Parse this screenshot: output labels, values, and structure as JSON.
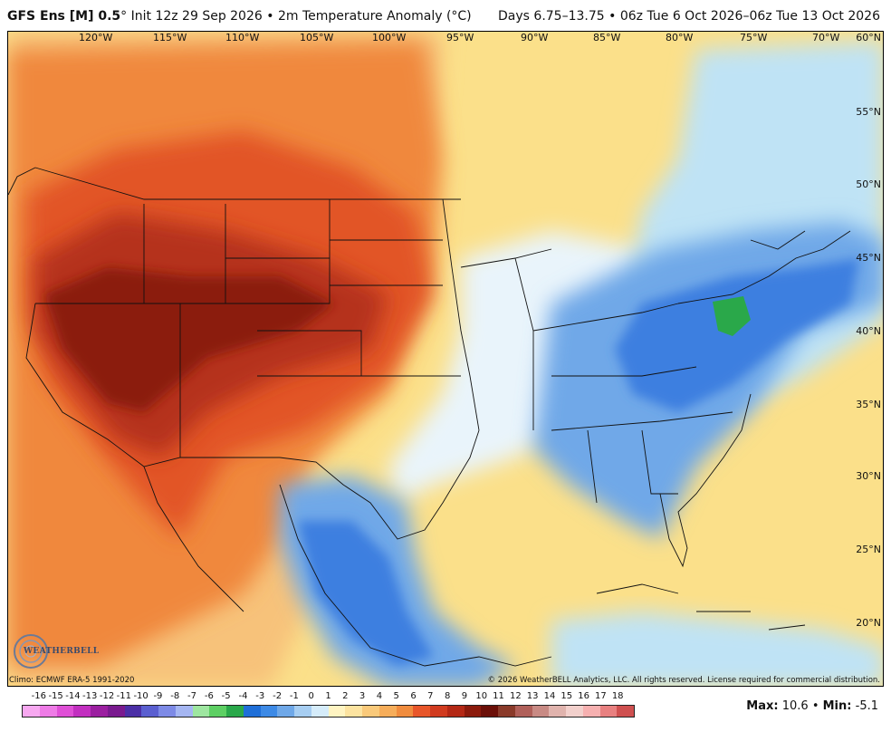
{
  "header": {
    "model": "GFS Ens [M] 0.5",
    "init": "° Init 12z 29 Sep 2026",
    "variable": "2m Temperature Anomaly (°C)",
    "days": "Days 6.75–13.75",
    "period": "06z Tue 6 Oct 2026–06z Tue 13 Oct 2026",
    "bullet": "•"
  },
  "map": {
    "longitude_labels": [
      "120°W",
      "115°W",
      "110°W",
      "105°W",
      "100°W",
      "95°W",
      "90°W",
      "85°W",
      "80°W",
      "75°W",
      "70°W"
    ],
    "latitude_labels": [
      "60°N",
      "55°N",
      "50°N",
      "45°N",
      "40°N",
      "35°N",
      "30°N",
      "25°N",
      "20°N"
    ],
    "colors": {
      "ocean_base": "#fbe08a",
      "warm_core": "#8b1a0c",
      "warm_mid": "#e8562a",
      "warm_light": "#f4a15f",
      "cool_light": "#bfe3f5",
      "cool_mid": "#6fa8e8",
      "cool_deep": "#2f6fd8",
      "extreme_cold": "#2aa84a"
    }
  },
  "footer": {
    "climo": "Climo: ECMWF ERA-5 1991-2020",
    "copyright": "© 2026 WeatherBELL Analytics, LLC. All rights reserved. License required for commercial distribution.",
    "logo_text": "WEATHERBELL"
  },
  "colorbar": {
    "ticks": [
      "-16",
      "-15",
      "-14",
      "-13",
      "-12",
      "-11",
      "-10",
      "-9",
      "-8",
      "-7",
      "-6",
      "-5",
      "-4",
      "-3",
      "-2",
      "-1",
      "0",
      "1",
      "2",
      "3",
      "4",
      "5",
      "6",
      "7",
      "8",
      "9",
      "10",
      "11",
      "12",
      "13",
      "14",
      "15",
      "16",
      "17",
      "18"
    ],
    "colors": [
      "#f7a8f0",
      "#ee7be6",
      "#df4fd6",
      "#c22fc0",
      "#9b1fa0",
      "#7a1a8f",
      "#4b2fa6",
      "#5a5fd0",
      "#7d8ae6",
      "#a5b6f2",
      "#9ee6a0",
      "#5dcf63",
      "#2aa84a",
      "#1f6fd8",
      "#3d8ae6",
      "#6fa8e8",
      "#a7cef2",
      "#d5ecfa",
      "#fff4c2",
      "#fce3a0",
      "#f9c97a",
      "#f6ad5a",
      "#f08c3e",
      "#e8562a",
      "#d13b1f",
      "#b42815",
      "#8b1a0c",
      "#6b0f08",
      "#8a3a2a",
      "#b0605a",
      "#c88a84",
      "#e0b3ad",
      "#f2d0cc",
      "#f6b0b0",
      "#e88080",
      "#cf5050"
    ]
  },
  "stats": {
    "max_label": "Max:",
    "max_value": "10.6",
    "min_label": "Min:",
    "min_value": "-5.1",
    "separator": "•"
  }
}
